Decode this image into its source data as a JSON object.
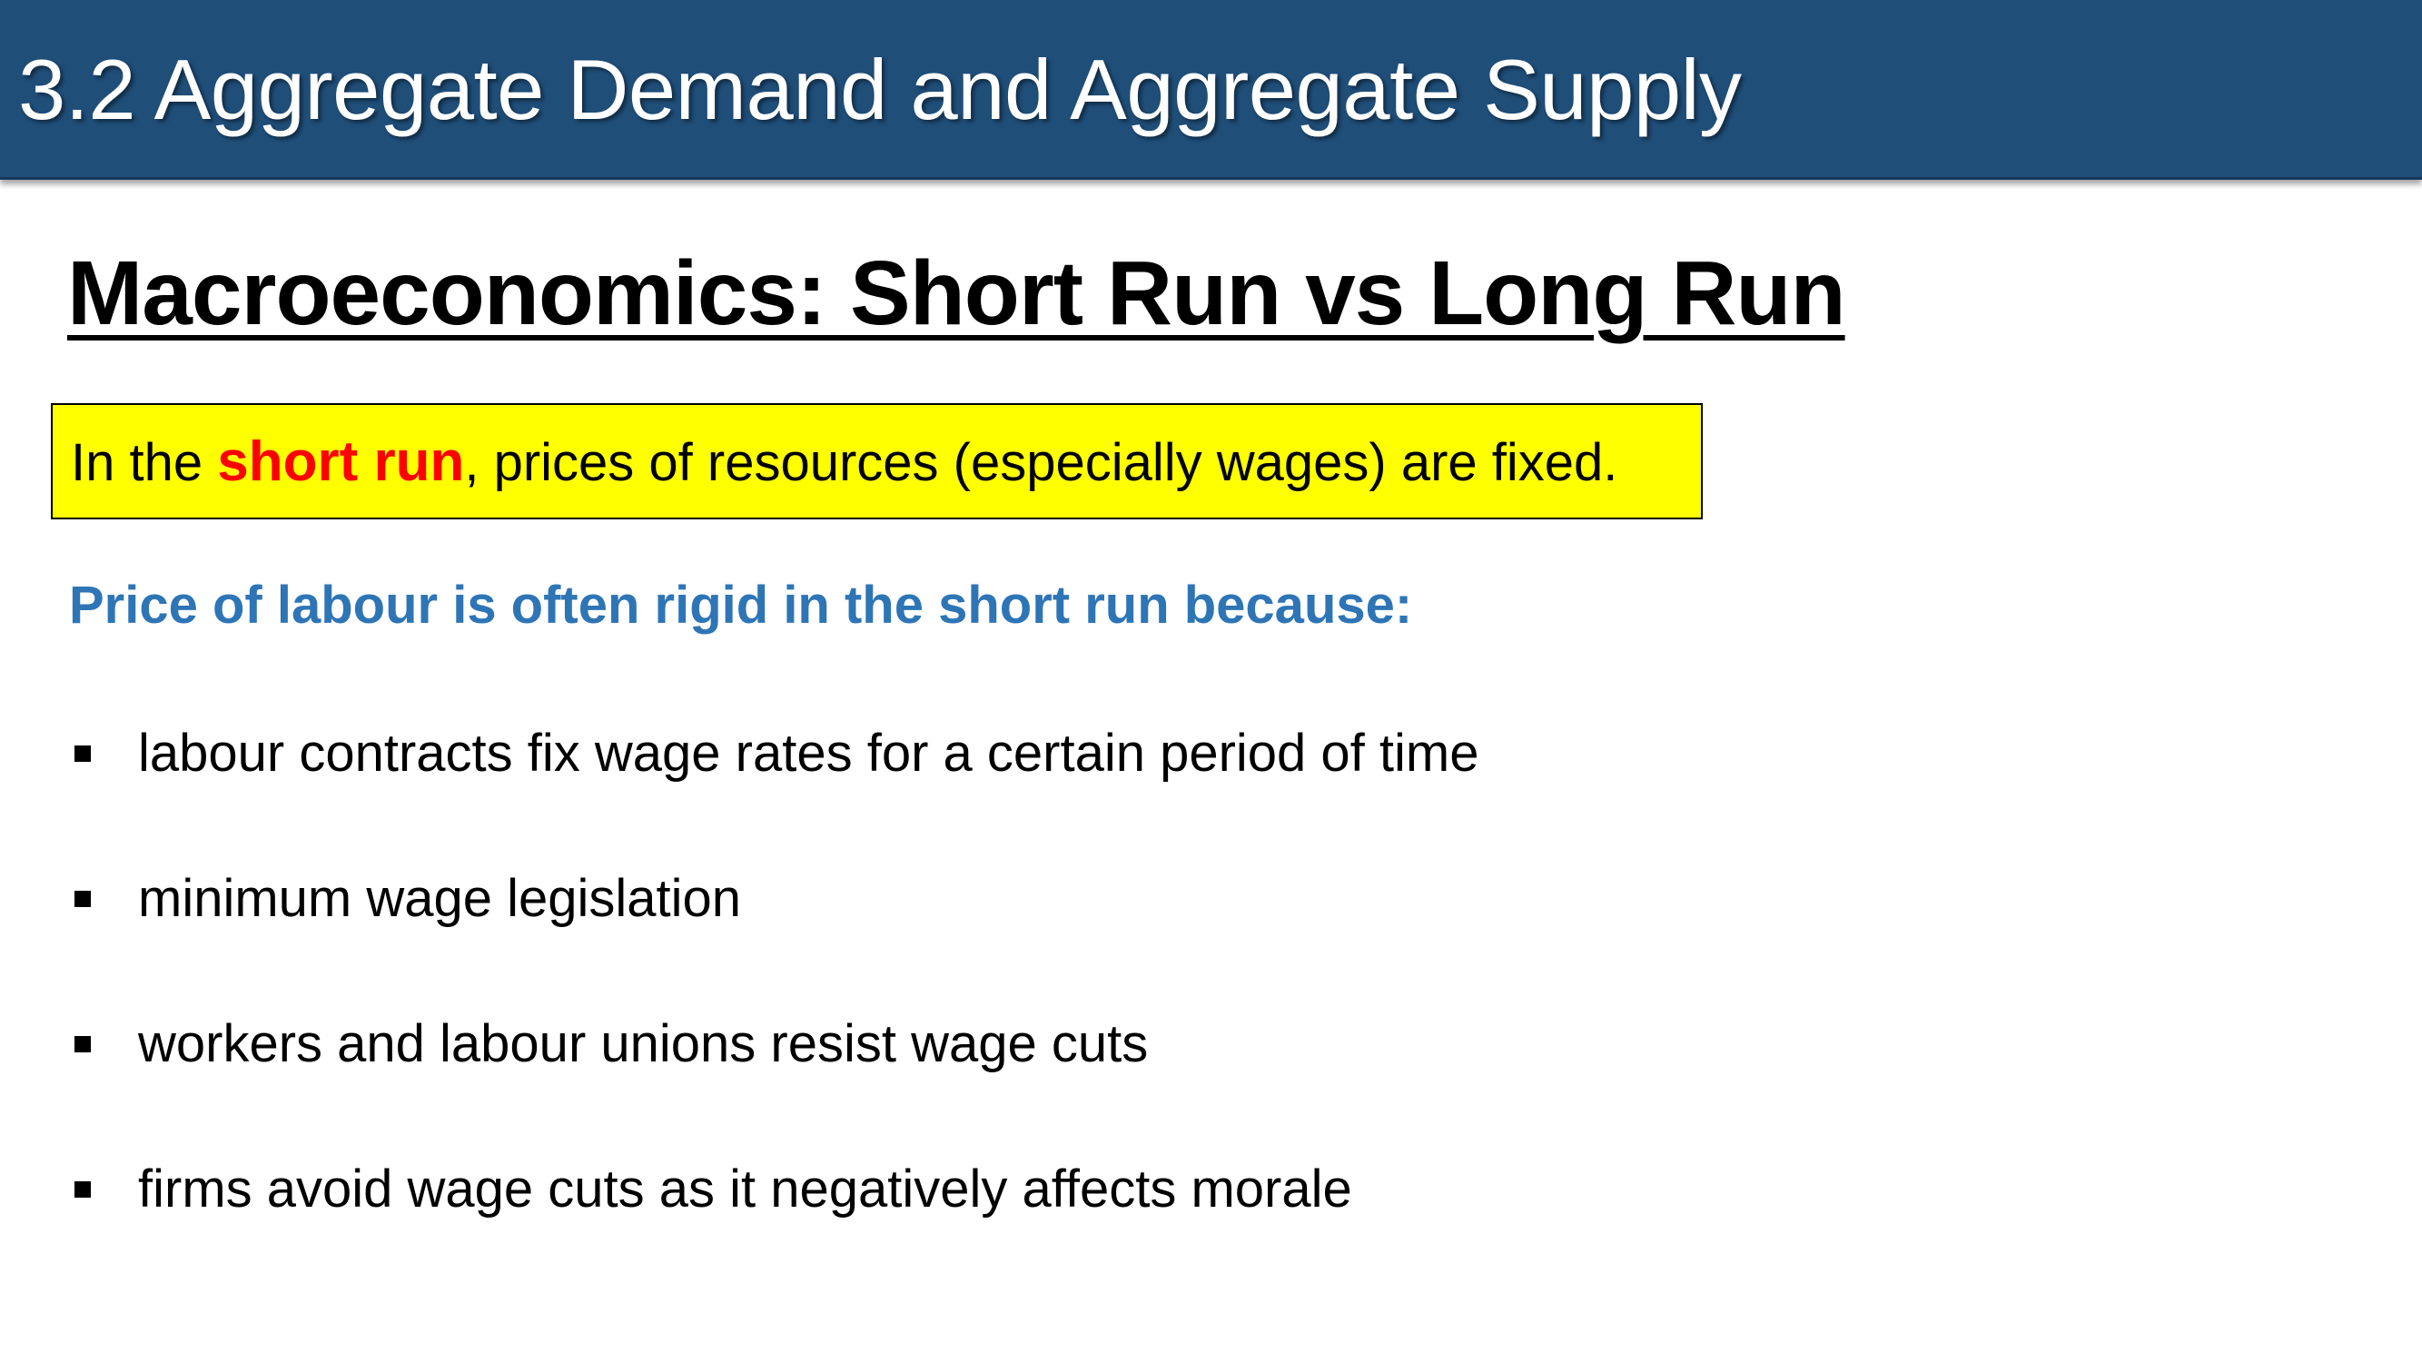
{
  "header": {
    "title": "3.2 Aggregate Demand and Aggregate Supply"
  },
  "main": {
    "heading": "Macroeconomics: Short Run vs Long Run",
    "highlight": {
      "prefix": "In the ",
      "term": "short run",
      "suffix": ", prices of resources (especially wages) are fixed."
    },
    "subheading": "Price of labour is often rigid in the short run because:",
    "bullets": [
      "labour contracts fix wage rates for a certain period of time",
      "minimum wage legislation",
      "workers and labour unions resist wage cuts",
      "firms avoid wage cuts as it negatively affects morale"
    ]
  },
  "colors": {
    "header_background": "#1f4e79",
    "highlight_background": "#ffff00",
    "highlight_term": "#ff0000",
    "subheading": "#2e75b6"
  }
}
